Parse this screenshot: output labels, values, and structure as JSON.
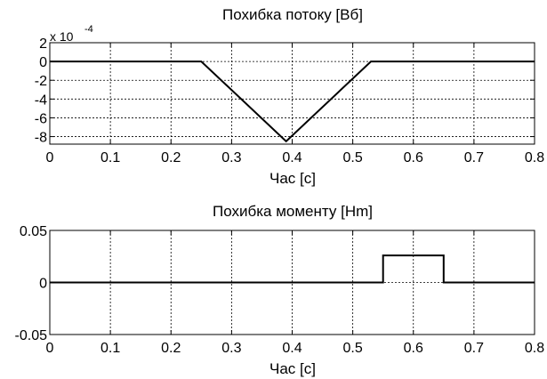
{
  "chart_data": [
    {
      "type": "line",
      "title": "Похибка потоку [Вб]",
      "xlabel": "Час [с]",
      "ylabel": "",
      "exponent_label": "x 10",
      "exponent_power": "-4",
      "xlim": [
        0,
        0.8
      ],
      "ylim": [
        -8.8,
        2
      ],
      "xticks": [
        0,
        0.1,
        0.2,
        0.3,
        0.4,
        0.5,
        0.6,
        0.7,
        0.8
      ],
      "xtick_labels": [
        "0",
        "0.1",
        "0.2",
        "0.3",
        "0.4",
        "0.5",
        "0.6",
        "0.7",
        "0.8"
      ],
      "yticks": [
        2,
        0,
        -2,
        -4,
        -6,
        -8
      ],
      "ytick_labels": [
        "2",
        "0",
        "-2",
        "-4",
        "-6",
        "-8"
      ],
      "grid": true,
      "series": [
        {
          "x": [
            0,
            0.25,
            0.39,
            0.53,
            0.65,
            0.8
          ],
          "y": [
            0,
            0,
            -8.5,
            0,
            0,
            0
          ]
        }
      ]
    },
    {
      "type": "line",
      "title": "Похибка моменту [Hm]",
      "xlabel": "Час [с]",
      "ylabel": "",
      "xlim": [
        0,
        0.8
      ],
      "ylim": [
        -0.05,
        0.05
      ],
      "xticks": [
        0,
        0.1,
        0.2,
        0.3,
        0.4,
        0.5,
        0.6,
        0.7,
        0.8
      ],
      "xtick_labels": [
        "0",
        "0.1",
        "0.2",
        "0.3",
        "0.4",
        "0.5",
        "0.6",
        "0.7",
        "0.8"
      ],
      "yticks": [
        0.05,
        0,
        -0.05
      ],
      "ytick_labels": [
        "0.05",
        "0",
        "-0.05"
      ],
      "grid": true,
      "series": [
        {
          "x": [
            0,
            0.55,
            0.55,
            0.65,
            0.65,
            0.8
          ],
          "y": [
            0,
            0,
            0.026,
            0.026,
            0,
            0
          ]
        }
      ]
    }
  ]
}
